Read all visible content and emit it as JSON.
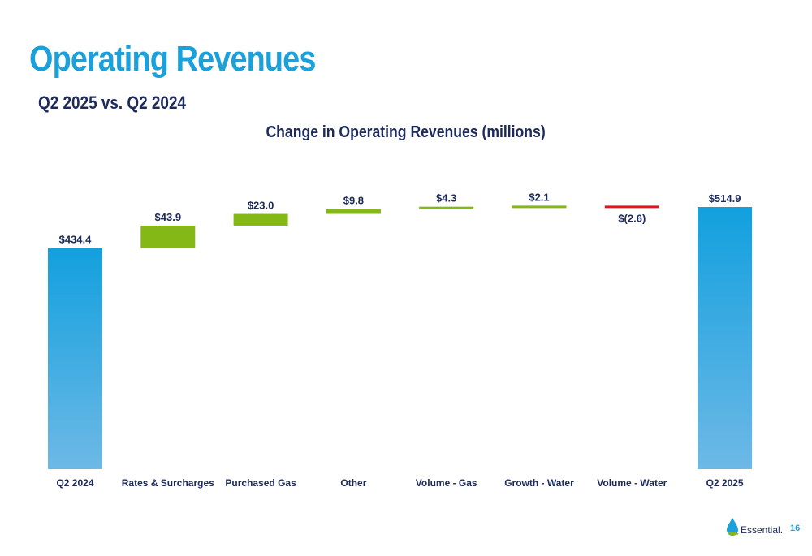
{
  "slide": {
    "title": "Operating Revenues",
    "subtitle": "Q2 2025 vs. Q2 2024",
    "page_number": "16",
    "logo_text": "Essential."
  },
  "chart_data": {
    "type": "bar",
    "subtype": "waterfall",
    "title": "Change in Operating Revenues (millions)",
    "categories": [
      "Q2 2024",
      "Rates & Surcharges",
      "Purchased Gas",
      "Other",
      "Volume - Gas",
      "Growth - Water",
      "Volume - Water",
      "Q2 2025"
    ],
    "values": [
      434.4,
      43.9,
      23.0,
      9.8,
      4.3,
      2.1,
      -2.6,
      514.9
    ],
    "data_labels": [
      "$434.4",
      "$43.9",
      "$23.0",
      "$9.8",
      "$4.3",
      "$2.1",
      "$(2.6)",
      "$514.9"
    ],
    "kinds": [
      "total",
      "delta",
      "delta",
      "delta",
      "delta",
      "delta",
      "delta",
      "total"
    ],
    "ylim": [
      0,
      514.9
    ],
    "grid": false,
    "legend": "none",
    "colors": {
      "total_top": "#12a0de",
      "total_bottom": "#6db9e6",
      "increase": "#84b816",
      "decrease": "#e3161b",
      "label": "#1c2a5c"
    }
  }
}
